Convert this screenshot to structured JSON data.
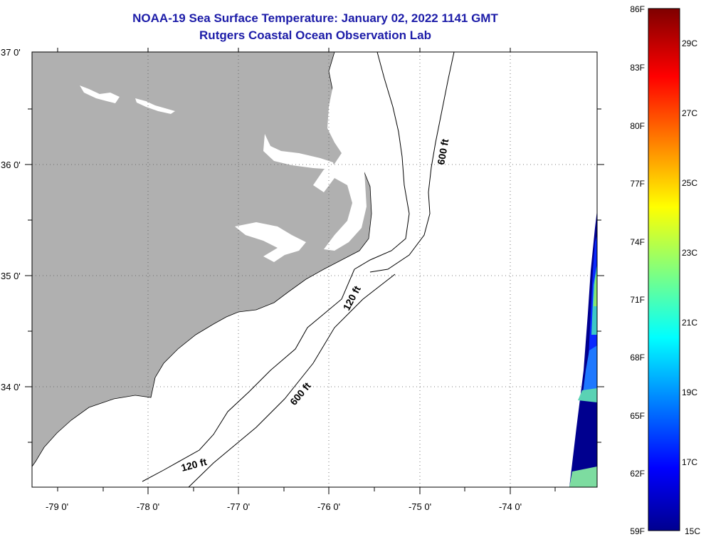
{
  "title": {
    "line1": "NOAA-19 Sea Surface Temperature:  January 02, 2022 1141 GMT",
    "line2": "Rutgers Coastal Ocean Observation Lab"
  },
  "map": {
    "lon_labels": [
      "-79 0'",
      "-78 0'",
      "-77 0'",
      "-76 0'",
      "-75 0'",
      "-74 0'"
    ],
    "lat_labels": [
      "37 0'",
      "36 0'",
      "35 0'",
      "34 0'"
    ],
    "contour_labels": [
      "600 ft",
      "120 ft",
      "600 ft",
      "120 ft"
    ],
    "land_color": "#b0b0b0",
    "water_color": "#ffffff"
  },
  "colorbar": {
    "fahrenheit_labels": [
      "86F",
      "83F",
      "80F",
      "77F",
      "74F",
      "71F",
      "68F",
      "65F",
      "62F",
      "59F"
    ],
    "celsius_labels": [
      "29C",
      "27C",
      "25C",
      "23C",
      "21C",
      "19C",
      "17C",
      "15C"
    ],
    "colormap": "jet"
  }
}
